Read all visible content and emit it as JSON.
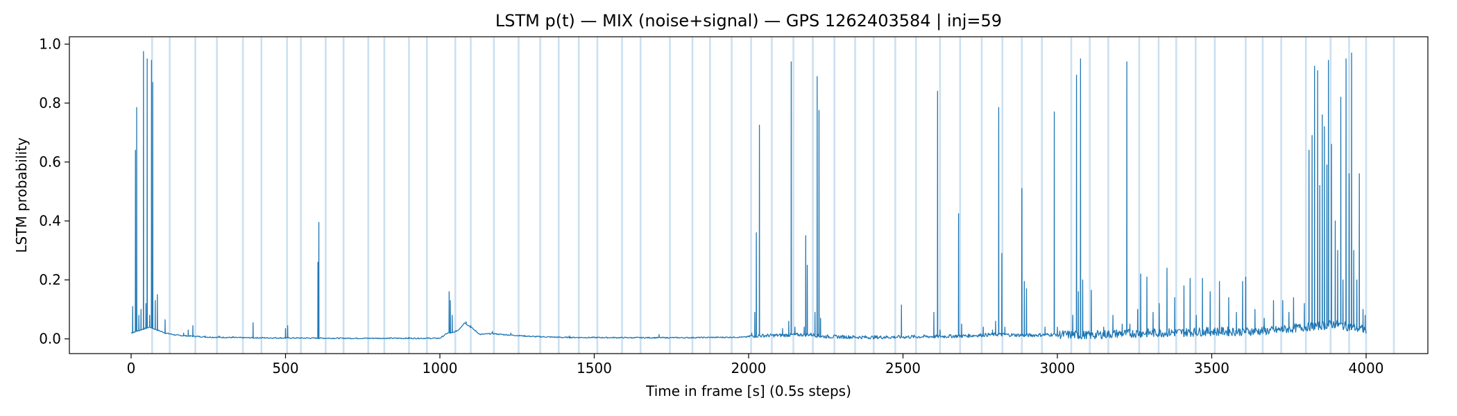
{
  "chart_data": {
    "type": "line",
    "title": "LSTM p(t) — MIX (noise+signal) — GPS 1262403584 | inj=59",
    "xlabel": "Time in frame [s] (0.5s steps)",
    "ylabel": "LSTM probability",
    "xlim": [
      -200,
      4200
    ],
    "ylim": [
      -0.05,
      1.025
    ],
    "x_ticks": [
      0,
      500,
      1000,
      1500,
      2000,
      2500,
      3000,
      3500,
      4000
    ],
    "x_tick_labels": [
      "0",
      "500",
      "1000",
      "1500",
      "2000",
      "2500",
      "3000",
      "3500",
      "4000"
    ],
    "y_ticks": [
      0.0,
      0.2,
      0.4,
      0.6,
      0.8,
      1.0
    ],
    "y_tick_labels": [
      "0.0",
      "0.2",
      "0.4",
      "0.6",
      "0.8",
      "1.0"
    ],
    "grid": false,
    "legend": "none",
    "colors": {
      "line": "#1f77b4",
      "injection_band": "#a9cbe8"
    },
    "injection_times": [
      68,
      125,
      208,
      278,
      362,
      422,
      505,
      550,
      630,
      688,
      768,
      820,
      900,
      958,
      1050,
      1100,
      1175,
      1255,
      1325,
      1385,
      1450,
      1510,
      1590,
      1650,
      1745,
      1818,
      1875,
      1945,
      2008,
      2075,
      2145,
      2208,
      2278,
      2345,
      2405,
      2475,
      2542,
      2620,
      2685,
      2755,
      2822,
      2885,
      2950,
      3045,
      3105,
      3165,
      3265,
      3328,
      3385,
      3448,
      3510,
      3610,
      3665,
      3725,
      3805,
      3885,
      3945,
      4000,
      4090
    ],
    "series": [
      {
        "baseline": [
          [
            0,
            0.02
          ],
          [
            60,
            0.04
          ],
          [
            110,
            0.02
          ],
          [
            150,
            0.012
          ],
          [
            250,
            0.006
          ],
          [
            350,
            0.004
          ],
          [
            500,
            0.003
          ],
          [
            700,
            0.002
          ],
          [
            1000,
            0.002
          ],
          [
            1025,
            0.02
          ],
          [
            1040,
            0.02
          ],
          [
            1060,
            0.03
          ],
          [
            1080,
            0.055
          ],
          [
            1100,
            0.04
          ],
          [
            1130,
            0.015
          ],
          [
            1170,
            0.018
          ],
          [
            1200,
            0.015
          ],
          [
            1300,
            0.008
          ],
          [
            1400,
            0.005
          ],
          [
            1600,
            0.004
          ],
          [
            1800,
            0.004
          ],
          [
            1990,
            0.006
          ],
          [
            2010,
            0.01
          ],
          [
            2100,
            0.012
          ],
          [
            2200,
            0.015
          ],
          [
            2240,
            0.008
          ],
          [
            2400,
            0.005
          ],
          [
            2600,
            0.008
          ],
          [
            2700,
            0.01
          ],
          [
            2800,
            0.015
          ],
          [
            2900,
            0.012
          ],
          [
            3000,
            0.015
          ],
          [
            3100,
            0.012
          ],
          [
            3200,
            0.018
          ],
          [
            3300,
            0.02
          ],
          [
            3400,
            0.022
          ],
          [
            3500,
            0.025
          ],
          [
            3600,
            0.025
          ],
          [
            3700,
            0.028
          ],
          [
            3800,
            0.04
          ],
          [
            3900,
            0.05
          ],
          [
            4000,
            0.03
          ]
        ],
        "spikes": [
          [
            5,
            0.11
          ],
          [
            14,
            0.64
          ],
          [
            18,
            0.785
          ],
          [
            25,
            0.08
          ],
          [
            32,
            0.1
          ],
          [
            40,
            0.975
          ],
          [
            48,
            0.12
          ],
          [
            52,
            0.95
          ],
          [
            60,
            0.08
          ],
          [
            66,
            0.945
          ],
          [
            70,
            0.87
          ],
          [
            78,
            0.13
          ],
          [
            85,
            0.15
          ],
          [
            110,
            0.065
          ],
          [
            150,
            0.015
          ],
          [
            170,
            0.02
          ],
          [
            185,
            0.03
          ],
          [
            200,
            0.045
          ],
          [
            240,
            0.01
          ],
          [
            285,
            0.01
          ],
          [
            330,
            0.008
          ],
          [
            395,
            0.055
          ],
          [
            500,
            0.035
          ],
          [
            507,
            0.045
          ],
          [
            605,
            0.26
          ],
          [
            608,
            0.395
          ],
          [
            900,
            0.005
          ],
          [
            1030,
            0.16
          ],
          [
            1034,
            0.13
          ],
          [
            1040,
            0.08
          ],
          [
            1085,
            0.058
          ],
          [
            1100,
            0.045
          ],
          [
            1170,
            0.025
          ],
          [
            1230,
            0.02
          ],
          [
            1420,
            0.01
          ],
          [
            1710,
            0.015
          ],
          [
            2010,
            0.02
          ],
          [
            2020,
            0.09
          ],
          [
            2025,
            0.36
          ],
          [
            2035,
            0.725
          ],
          [
            2110,
            0.035
          ],
          [
            2130,
            0.06
          ],
          [
            2138,
            0.94
          ],
          [
            2150,
            0.04
          ],
          [
            2180,
            0.04
          ],
          [
            2185,
            0.35
          ],
          [
            2190,
            0.25
          ],
          [
            2215,
            0.09
          ],
          [
            2222,
            0.89
          ],
          [
            2228,
            0.775
          ],
          [
            2233,
            0.07
          ],
          [
            2330,
            0.008
          ],
          [
            2440,
            0.008
          ],
          [
            2495,
            0.115
          ],
          [
            2600,
            0.09
          ],
          [
            2612,
            0.84
          ],
          [
            2620,
            0.03
          ],
          [
            2680,
            0.425
          ],
          [
            2690,
            0.05
          ],
          [
            2760,
            0.04
          ],
          [
            2790,
            0.03
          ],
          [
            2800,
            0.06
          ],
          [
            2810,
            0.785
          ],
          [
            2820,
            0.29
          ],
          [
            2830,
            0.04
          ],
          [
            2885,
            0.51
          ],
          [
            2893,
            0.195
          ],
          [
            2900,
            0.17
          ],
          [
            2960,
            0.04
          ],
          [
            2990,
            0.77
          ],
          [
            3000,
            0.04
          ],
          [
            3050,
            0.08
          ],
          [
            3062,
            0.895
          ],
          [
            3068,
            0.16
          ],
          [
            3075,
            0.95
          ],
          [
            3082,
            0.2
          ],
          [
            3110,
            0.165
          ],
          [
            3150,
            0.04
          ],
          [
            3180,
            0.08
          ],
          [
            3210,
            0.05
          ],
          [
            3225,
            0.94
          ],
          [
            3235,
            0.05
          ],
          [
            3260,
            0.1
          ],
          [
            3270,
            0.22
          ],
          [
            3290,
            0.21
          ],
          [
            3310,
            0.09
          ],
          [
            3330,
            0.12
          ],
          [
            3355,
            0.24
          ],
          [
            3380,
            0.14
          ],
          [
            3410,
            0.18
          ],
          [
            3430,
            0.205
          ],
          [
            3450,
            0.08
          ],
          [
            3470,
            0.205
          ],
          [
            3495,
            0.16
          ],
          [
            3525,
            0.195
          ],
          [
            3555,
            0.14
          ],
          [
            3580,
            0.09
          ],
          [
            3600,
            0.195
          ],
          [
            3610,
            0.21
          ],
          [
            3640,
            0.1
          ],
          [
            3670,
            0.07
          ],
          [
            3700,
            0.13
          ],
          [
            3730,
            0.13
          ],
          [
            3750,
            0.09
          ],
          [
            3765,
            0.14
          ],
          [
            3800,
            0.12
          ],
          [
            3815,
            0.64
          ],
          [
            3825,
            0.69
          ],
          [
            3833,
            0.925
          ],
          [
            3843,
            0.91
          ],
          [
            3850,
            0.52
          ],
          [
            3858,
            0.76
          ],
          [
            3865,
            0.72
          ],
          [
            3873,
            0.59
          ],
          [
            3878,
            0.945
          ],
          [
            3888,
            0.66
          ],
          [
            3900,
            0.4
          ],
          [
            3908,
            0.3
          ],
          [
            3918,
            0.82
          ],
          [
            3925,
            0.2
          ],
          [
            3935,
            0.95
          ],
          [
            3945,
            0.56
          ],
          [
            3953,
            0.97
          ],
          [
            3960,
            0.3
          ],
          [
            3970,
            0.2
          ],
          [
            3978,
            0.56
          ],
          [
            3990,
            0.1
          ],
          [
            3997,
            0.08
          ]
        ]
      }
    ]
  }
}
